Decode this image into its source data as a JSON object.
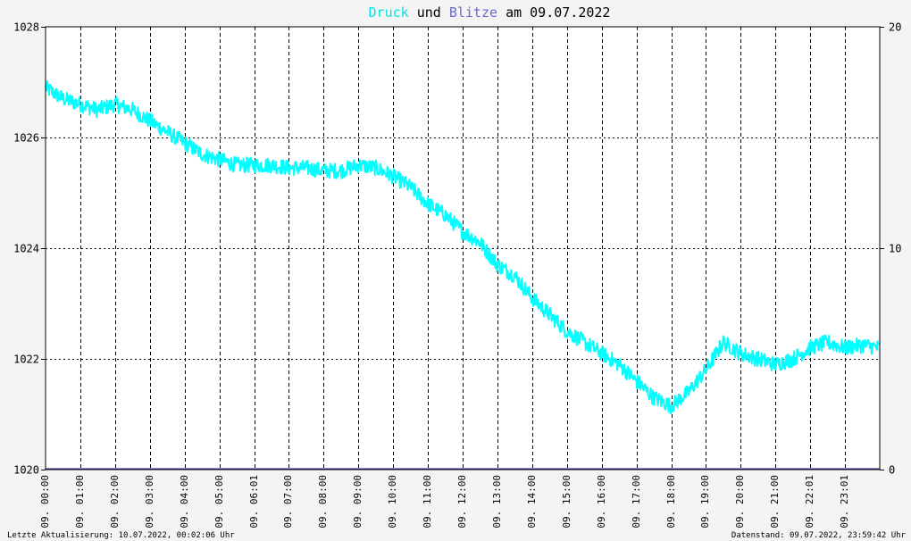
{
  "chart_data": {
    "type": "line",
    "title": {
      "part1": "Druck",
      "part2": "und",
      "part3": "Blitze",
      "part4": "am 09.07.2022"
    },
    "xlabel": "",
    "ylabel": "",
    "y_left": {
      "ylim": [
        1020,
        1028
      ],
      "ticks": [
        "1020",
        "1022",
        "1024",
        "1026",
        "1028"
      ]
    },
    "y_right": {
      "ylim": [
        0,
        20
      ],
      "ticks": [
        "0",
        "10",
        "20"
      ]
    },
    "x_range_hours": [
      0,
      24
    ],
    "x_ticks": [
      {
        "h": 0,
        "label": "09. 00:00"
      },
      {
        "h": 1,
        "label": "09. 01:00"
      },
      {
        "h": 2,
        "label": "09. 02:00"
      },
      {
        "h": 3,
        "label": "09. 03:00"
      },
      {
        "h": 4,
        "label": "09. 04:00"
      },
      {
        "h": 5,
        "label": "09. 05:00"
      },
      {
        "h": 6,
        "label": "09. 06:01"
      },
      {
        "h": 7,
        "label": "09. 07:00"
      },
      {
        "h": 8,
        "label": "09. 08:00"
      },
      {
        "h": 9,
        "label": "09. 09:00"
      },
      {
        "h": 10,
        "label": "09. 10:00"
      },
      {
        "h": 11,
        "label": "09. 11:00"
      },
      {
        "h": 12,
        "label": "09. 12:00"
      },
      {
        "h": 13,
        "label": "09. 13:00"
      },
      {
        "h": 14,
        "label": "09. 14:00"
      },
      {
        "h": 15,
        "label": "09. 15:00"
      },
      {
        "h": 16,
        "label": "09. 16:00"
      },
      {
        "h": 17,
        "label": "09. 17:00"
      },
      {
        "h": 18,
        "label": "09. 18:00"
      },
      {
        "h": 19,
        "label": "09. 19:00"
      },
      {
        "h": 20,
        "label": "09. 20:00"
      },
      {
        "h": 21,
        "label": "09. 21:00"
      },
      {
        "h": 22,
        "label": "09. 22:01"
      },
      {
        "h": 23,
        "label": "09. 23:01"
      }
    ],
    "grid": true,
    "series": [
      {
        "name": "Druck",
        "color": "#00ffff",
        "axis": "left",
        "x": [
          0,
          0.5,
          1,
          1.5,
          2,
          2.5,
          3,
          3.5,
          4,
          4.5,
          5,
          5.5,
          6,
          6.5,
          7,
          7.5,
          8,
          8.5,
          9,
          9.5,
          10,
          10.5,
          11,
          11.5,
          12,
          12.5,
          13,
          13.5,
          14,
          14.5,
          15,
          15.5,
          16,
          16.5,
          17,
          17.5,
          18,
          18.5,
          19,
          19.5,
          20,
          20.5,
          21,
          21.5,
          22,
          22.5,
          23,
          23.5,
          23.99
        ],
        "values": [
          1026.9,
          1026.7,
          1026.6,
          1026.5,
          1026.6,
          1026.5,
          1026.3,
          1026.1,
          1025.9,
          1025.7,
          1025.6,
          1025.5,
          1025.5,
          1025.5,
          1025.45,
          1025.45,
          1025.4,
          1025.4,
          1025.5,
          1025.45,
          1025.3,
          1025.1,
          1024.8,
          1024.6,
          1024.3,
          1024.1,
          1023.7,
          1023.5,
          1023.1,
          1022.8,
          1022.5,
          1022.3,
          1022.1,
          1021.9,
          1021.6,
          1021.3,
          1021.15,
          1021.4,
          1021.8,
          1022.3,
          1022.1,
          1022.0,
          1021.9,
          1022.0,
          1022.2,
          1022.3,
          1022.2,
          1022.25,
          1022.2
        ]
      },
      {
        "name": "Blitze",
        "color": "#333399",
        "axis": "right",
        "x": [
          0,
          24
        ],
        "values": [
          0,
          0
        ]
      }
    ]
  },
  "footer": {
    "left": "Letzte Aktualisierung: 10.07.2022, 00:02:06 Uhr",
    "right": "Datenstand: 09.07.2022, 23:59:42 Uhr"
  },
  "colors": {
    "background": "#f4f4f4",
    "plot_background": "#ffffff",
    "druck": "#00ffff",
    "blitze": "#333399",
    "grid": "#000000"
  }
}
